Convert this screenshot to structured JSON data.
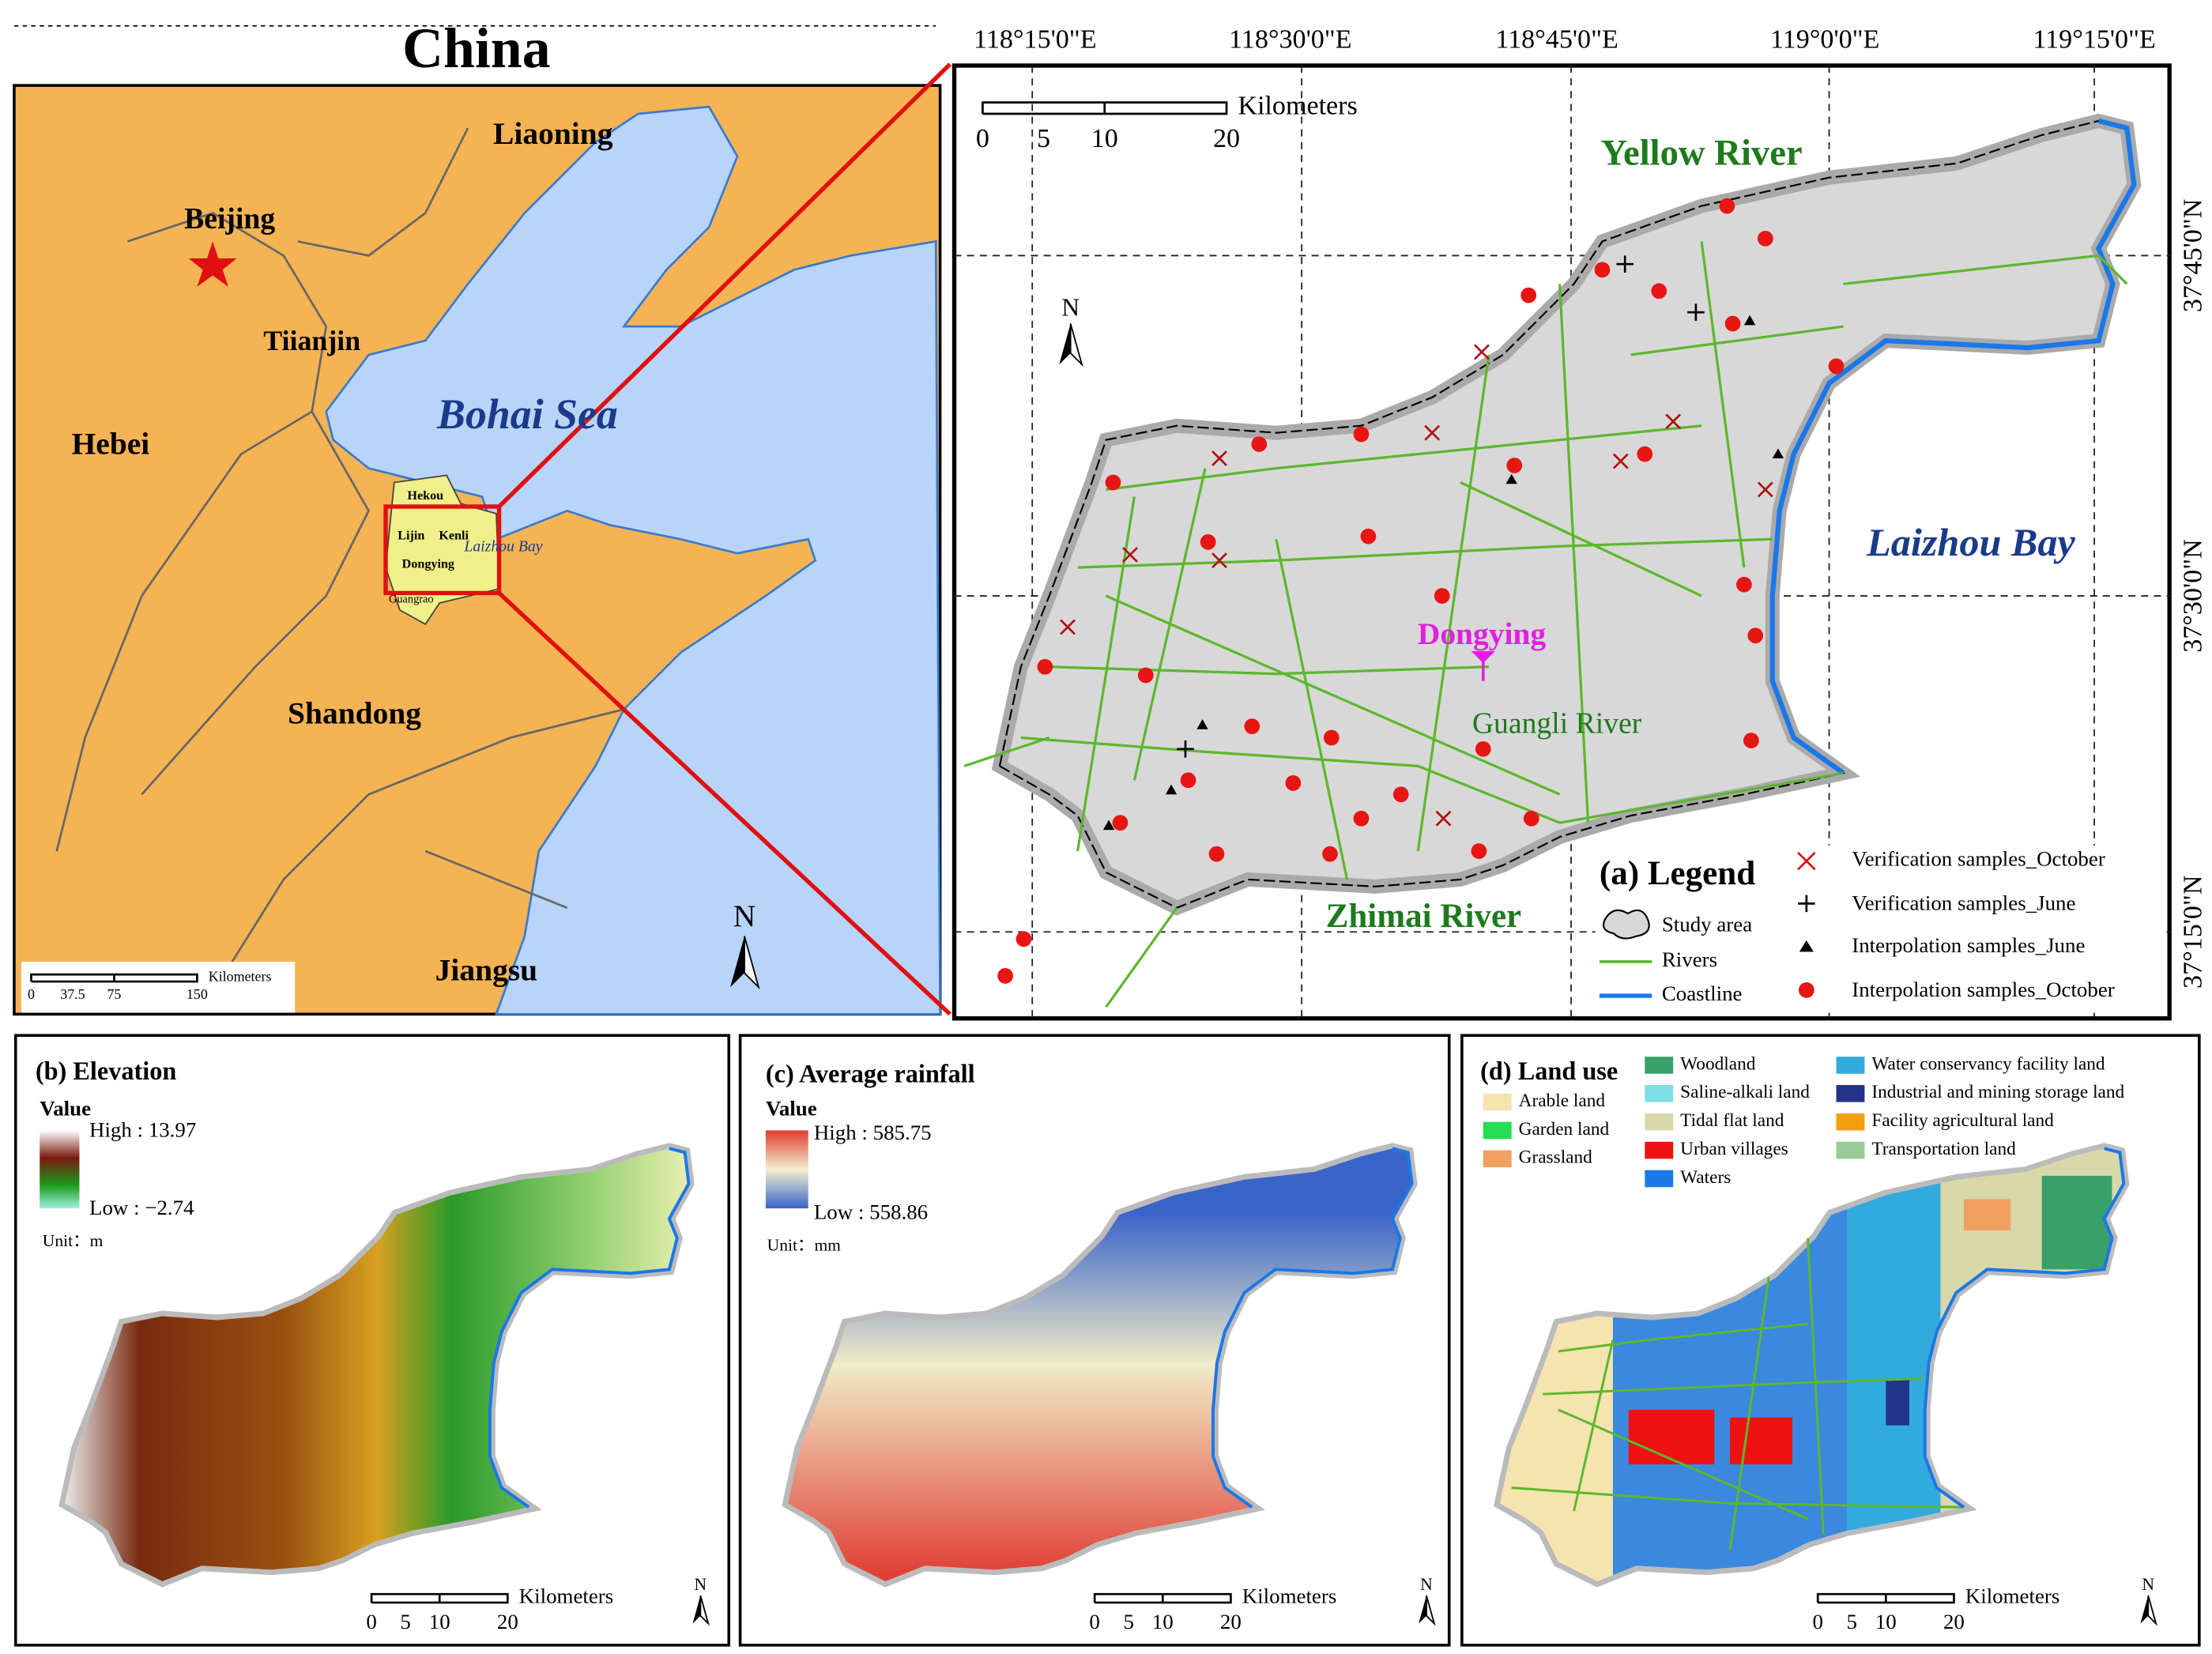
{
  "china_panel": {
    "title": "China",
    "labels": {
      "liaoning": "Liaoning",
      "beijing": "Beijing",
      "tianjin": "Tiianjin",
      "hebei": "Hebei",
      "sea": "Bohai  Sea",
      "shandong": "Shandong",
      "jiangsu": "Jiangsu"
    },
    "inset": {
      "hekou": "Hekou",
      "lijin": "Lijin",
      "kenli": "Kenli",
      "dongying": "Dongying",
      "bay": "Laizhou Bay",
      "guangrao": "Guangrao"
    },
    "north": "N",
    "scale": {
      "ticks": [
        "0",
        "37.5",
        "75",
        "150"
      ],
      "unit": "Kilometers"
    }
  },
  "panel_a": {
    "lon": [
      "118°15'0\"E",
      "118°30'0\"E",
      "118°45'0\"E",
      "119°0'0\"E",
      "119°15'0\"E"
    ],
    "lat": [
      "37°45'0\"N",
      "37°30'0\"N",
      "37°15'0\"N"
    ],
    "scale": {
      "ticks": [
        "0",
        "5",
        "10",
        "20"
      ],
      "unit": "Kilometers"
    },
    "north": "N",
    "labels": {
      "yellow": "Yellow River",
      "laizhou": "Laizhou Bay",
      "city": "Dongying",
      "guangli": "Guangli River",
      "zhimai": "Zhimai River"
    },
    "legend": {
      "title": "(a) Legend",
      "items": [
        "Study area",
        "Rivers",
        "Coastline",
        "Verification samples_October",
        "Verification samples_June",
        "Interpolation samples_June",
        "Interpolation samples_October"
      ]
    }
  },
  "panel_b": {
    "title": "(b) Elevation",
    "value": "Value",
    "high": "High : 13.97",
    "low": "Low : −2.74",
    "unit": "Unit：m",
    "north": "N",
    "scale": {
      "ticks": [
        "0",
        "5",
        "10",
        "20"
      ],
      "unit": "Kilometers"
    }
  },
  "panel_c": {
    "title": "(c) Average rainfall",
    "value": "Value",
    "high": "High : 585.75",
    "low": "Low : 558.86",
    "unit": "Unit：mm",
    "north": "N",
    "scale": {
      "ticks": [
        "0",
        "5",
        "10",
        "20"
      ],
      "unit": "Kilometers"
    }
  },
  "panel_d": {
    "title": "(d) Land use",
    "north": "N",
    "scale": {
      "ticks": [
        "0",
        "5",
        "10",
        "20"
      ],
      "unit": "Kilometers"
    },
    "items": [
      {
        "name": "Arable land",
        "color": "#f5e3b0"
      },
      {
        "name": "Garden land",
        "color": "#22dd55"
      },
      {
        "name": "Grassland",
        "color": "#f0a060"
      },
      {
        "name": "Woodland",
        "color": "#3aa06a"
      },
      {
        "name": "Saline-alkali land",
        "color": "#7fdde8"
      },
      {
        "name": "Tidal flat land",
        "color": "#d8d8a8"
      },
      {
        "name": "Urban villages",
        "color": "#ee1111"
      },
      {
        "name": "Waters",
        "color": "#1a78e8"
      },
      {
        "name": "Water conservancy facility land",
        "color": "#33aadd"
      },
      {
        "name": "Industrial and mining storage land",
        "color": "#223388"
      },
      {
        "name": "Facility agricultural land",
        "color": "#f0a010"
      },
      {
        "name": "Transportation land",
        "color": "#99cc99"
      }
    ]
  }
}
